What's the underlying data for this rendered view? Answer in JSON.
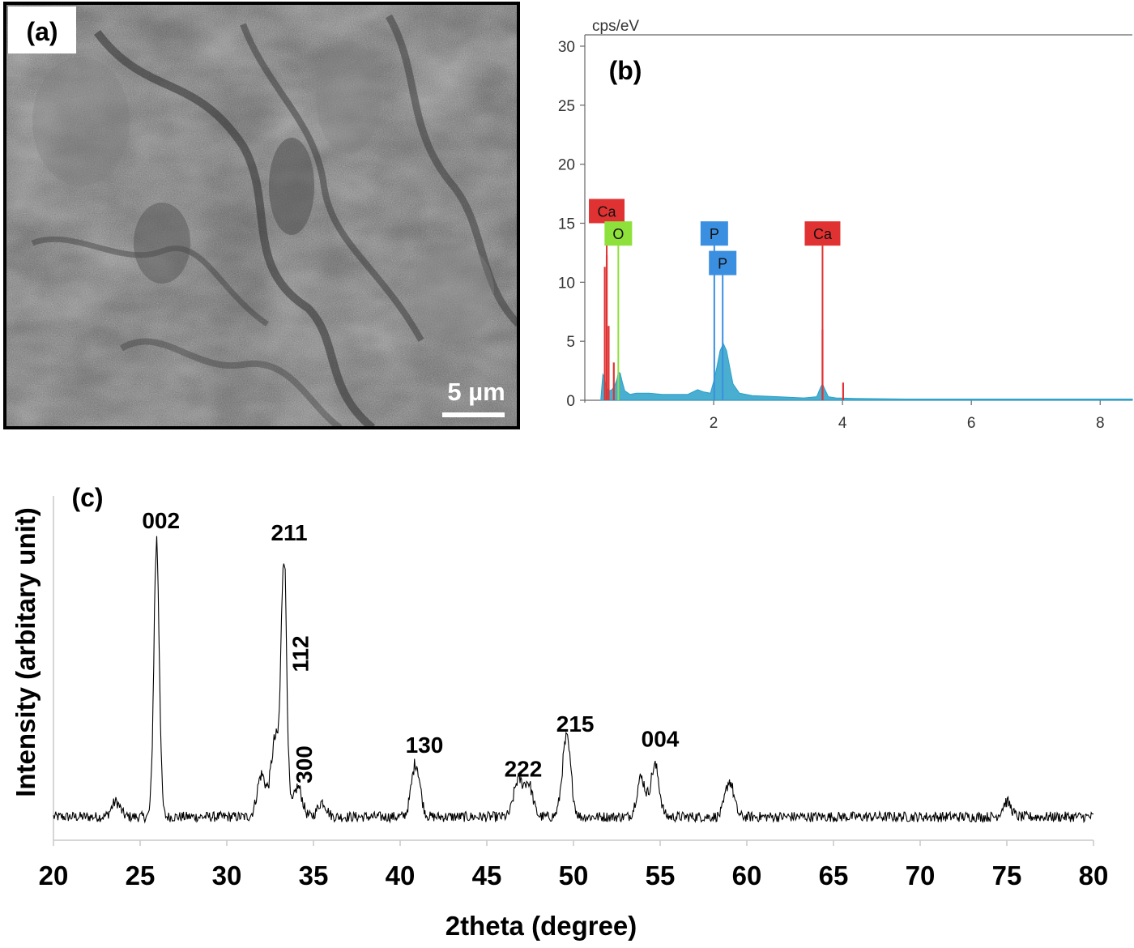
{
  "panel_a": {
    "label": "(a)",
    "scale_bar_label": "5 µm",
    "image_kind": "SEM micrograph"
  },
  "panel_b": {
    "label": "(b)",
    "y_unit": "cps/eV"
  },
  "panel_c": {
    "label": "(c)"
  },
  "colors": {
    "ca": "#e03232",
    "o": "#8ee03a",
    "p": "#3b8fe0",
    "spectrum_fill": "#2aa0c8",
    "xrd_line": "#000000"
  },
  "chart_data": [
    {
      "type": "area",
      "panel": "(b)",
      "ylabel": "cps/eV",
      "xlim": [
        0.0,
        8.5
      ],
      "ylim": [
        0,
        30
      ],
      "x_ticks": [
        2,
        4,
        6,
        8
      ],
      "y_ticks": [
        0,
        5,
        10,
        15,
        20,
        25,
        30
      ],
      "grid": false,
      "series": [
        {
          "x": [
            0.25,
            0.28,
            0.3,
            0.34,
            0.38,
            0.42,
            0.46,
            0.5,
            0.52,
            0.55,
            0.58,
            0.62,
            0.7,
            0.8,
            1.0,
            1.2,
            1.4,
            1.6,
            1.75,
            1.85,
            1.95,
            2.0,
            2.05,
            2.1,
            2.15,
            2.2,
            2.25,
            2.3,
            2.4,
            2.6,
            3.0,
            3.4,
            3.6,
            3.66,
            3.69,
            3.72,
            3.78,
            3.9,
            4.2,
            5.0,
            6.0,
            7.0,
            8.0,
            8.5
          ],
          "y": [
            0.2,
            2.2,
            2.0,
            1.0,
            0.8,
            0.9,
            1.2,
            1.8,
            2.4,
            2.3,
            1.6,
            0.8,
            0.5,
            0.6,
            0.6,
            0.5,
            0.5,
            0.5,
            0.9,
            0.7,
            0.6,
            1.6,
            2.8,
            4.2,
            4.8,
            4.2,
            2.8,
            1.4,
            0.6,
            0.4,
            0.3,
            0.2,
            0.3,
            1.1,
            1.4,
            1.0,
            0.3,
            0.2,
            0.15,
            0.1,
            0.1,
            0.1,
            0.1,
            0.1
          ]
        }
      ],
      "element_markers": [
        {
          "element": "Ca",
          "energy": 0.34,
          "height": 15.0,
          "box": "Ca"
        },
        {
          "element": "O",
          "energy": 0.52,
          "height": 13.1,
          "box": "O"
        },
        {
          "element": "P",
          "energy": 2.01,
          "height": 13.1,
          "box": "P"
        },
        {
          "element": "P",
          "energy": 2.14,
          "height": 10.6,
          "box": "P"
        },
        {
          "element": "Ca",
          "energy": 3.69,
          "height": 13.1,
          "box": "Ca"
        }
      ],
      "red_lines": [
        {
          "energy": 0.31,
          "height": 11.3
        },
        {
          "energy": 0.34,
          "height": 12.3
        },
        {
          "energy": 0.37,
          "height": 6.3
        },
        {
          "energy": 0.45,
          "height": 3.2
        },
        {
          "energy": 3.69,
          "height": 6.0
        },
        {
          "energy": 4.01,
          "height": 1.5
        }
      ]
    },
    {
      "type": "line",
      "panel": "(c)",
      "xlabel": "2theta (degree)",
      "ylabel": "Intensity (arbitary unit)",
      "xlim": [
        20,
        80
      ],
      "x_ticks": [
        20,
        25,
        30,
        35,
        40,
        45,
        50,
        55,
        60,
        65,
        70,
        75,
        80
      ],
      "ylim": [
        0,
        100
      ],
      "y_axis_ticks_shown": false,
      "x_start": 20,
      "x_end": 80,
      "baseline_intensity": 3.5,
      "noise_amplitude": 1.6,
      "peaks": [
        {
          "two_theta": 23.6,
          "intensity": 5
        },
        {
          "two_theta": 25.95,
          "intensity": 92
        },
        {
          "two_theta": 32.0,
          "intensity": 14
        },
        {
          "two_theta": 32.8,
          "intensity": 26
        },
        {
          "two_theta": 33.3,
          "intensity": 86
        },
        {
          "two_theta": 34.1,
          "intensity": 10
        },
        {
          "two_theta": 35.5,
          "intensity": 5
        },
        {
          "two_theta": 40.9,
          "intensity": 18
        },
        {
          "two_theta": 46.8,
          "intensity": 12
        },
        {
          "two_theta": 47.4,
          "intensity": 11
        },
        {
          "two_theta": 49.6,
          "intensity": 26
        },
        {
          "two_theta": 53.9,
          "intensity": 13
        },
        {
          "two_theta": 54.7,
          "intensity": 17
        },
        {
          "two_theta": 59.0,
          "intensity": 12
        },
        {
          "two_theta": 75.0,
          "intensity": 5
        }
      ],
      "annotations": [
        {
          "text": "002",
          "two_theta": 26.2,
          "intensity": 100,
          "rotated": false
        },
        {
          "text": "211",
          "two_theta": 33.6,
          "intensity": 96,
          "rotated": false
        },
        {
          "text": "112",
          "two_theta": 34.7,
          "intensity": 58,
          "rotated": true
        },
        {
          "text": "300",
          "two_theta": 34.9,
          "intensity": 21,
          "rotated": true
        },
        {
          "text": "130",
          "two_theta": 41.4,
          "intensity": 25,
          "rotated": false
        },
        {
          "text": "222",
          "two_theta": 47.1,
          "intensity": 17,
          "rotated": false
        },
        {
          "text": "215",
          "two_theta": 50.1,
          "intensity": 32,
          "rotated": false
        },
        {
          "text": "004",
          "two_theta": 55.0,
          "intensity": 27,
          "rotated": false
        }
      ]
    }
  ]
}
